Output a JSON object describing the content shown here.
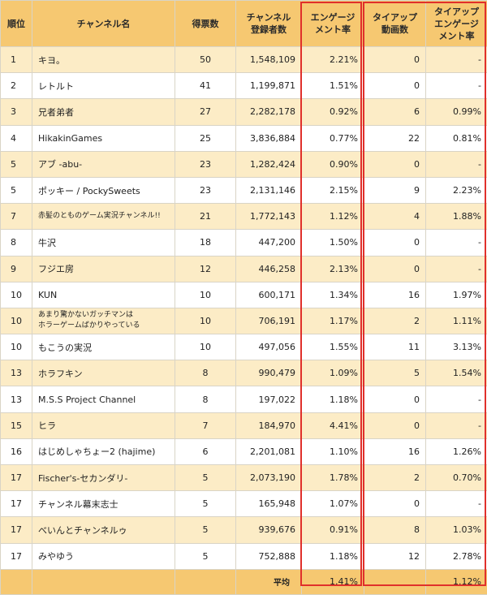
{
  "headers": {
    "rank": "順位",
    "channel": "チャンネル名",
    "votes": "得票数",
    "subscribers": "チャンネル\n登録者数",
    "engagement": "エンゲージ\nメント率",
    "tieup_videos": "タイアップ\n動画数",
    "tieup_engagement": "タイアップ\nエンゲージ\nメント率"
  },
  "rows": [
    {
      "rank": "1",
      "channel": "キヨ。",
      "votes": "50",
      "subscribers": "1,548,109",
      "engagement": "2.21%",
      "tieup_videos": "0",
      "tieup_engagement": "-"
    },
    {
      "rank": "2",
      "channel": "レトルト",
      "votes": "41",
      "subscribers": "1,199,871",
      "engagement": "1.51%",
      "tieup_videos": "0",
      "tieup_engagement": "-"
    },
    {
      "rank": "3",
      "channel": "兄者弟者",
      "votes": "27",
      "subscribers": "2,282,178",
      "engagement": "0.92%",
      "tieup_videos": "6",
      "tieup_engagement": "0.99%"
    },
    {
      "rank": "4",
      "channel": "HikakinGames",
      "votes": "25",
      "subscribers": "3,836,884",
      "engagement": "0.77%",
      "tieup_videos": "22",
      "tieup_engagement": "0.81%"
    },
    {
      "rank": "5",
      "channel": "アブ -abu-",
      "votes": "23",
      "subscribers": "1,282,424",
      "engagement": "0.90%",
      "tieup_videos": "0",
      "tieup_engagement": "-"
    },
    {
      "rank": "5",
      "channel": "ポッキー / PockySweets",
      "votes": "23",
      "subscribers": "2,131,146",
      "engagement": "2.15%",
      "tieup_videos": "9",
      "tieup_engagement": "2.23%"
    },
    {
      "rank": "7",
      "channel": "赤髪のとものゲーム実況チャンネル!!",
      "small": true,
      "votes": "21",
      "subscribers": "1,772,143",
      "engagement": "1.12%",
      "tieup_videos": "4",
      "tieup_engagement": "1.88%"
    },
    {
      "rank": "8",
      "channel": "牛沢",
      "votes": "18",
      "subscribers": "447,200",
      "engagement": "1.50%",
      "tieup_videos": "0",
      "tieup_engagement": "-"
    },
    {
      "rank": "9",
      "channel": "フジエ房",
      "votes": "12",
      "subscribers": "446,258",
      "engagement": "2.13%",
      "tieup_videos": "0",
      "tieup_engagement": "-"
    },
    {
      "rank": "10",
      "channel": "KUN",
      "votes": "10",
      "subscribers": "600,171",
      "engagement": "1.34%",
      "tieup_videos": "16",
      "tieup_engagement": "1.97%"
    },
    {
      "rank": "10",
      "channel": "あまり驚かないガッチマンは\nホラーゲームばかりやっている",
      "small": true,
      "votes": "10",
      "subscribers": "706,191",
      "engagement": "1.17%",
      "tieup_videos": "2",
      "tieup_engagement": "1.11%"
    },
    {
      "rank": "10",
      "channel": "もこうの実況",
      "votes": "10",
      "subscribers": "497,056",
      "engagement": "1.55%",
      "tieup_videos": "11",
      "tieup_engagement": "3.13%"
    },
    {
      "rank": "13",
      "channel": "ホラフキン",
      "votes": "8",
      "subscribers": "990,479",
      "engagement": "1.09%",
      "tieup_videos": "5",
      "tieup_engagement": "1.54%"
    },
    {
      "rank": "13",
      "channel": "M.S.S Project Channel",
      "votes": "8",
      "subscribers": "197,022",
      "engagement": "1.18%",
      "tieup_videos": "0",
      "tieup_engagement": "-"
    },
    {
      "rank": "15",
      "channel": "ヒラ",
      "votes": "7",
      "subscribers": "184,970",
      "engagement": "4.41%",
      "tieup_videos": "0",
      "tieup_engagement": "-"
    },
    {
      "rank": "16",
      "channel": "はじめしゃちょー2 (hajime)",
      "votes": "6",
      "subscribers": "2,201,081",
      "engagement": "1.10%",
      "tieup_videos": "16",
      "tieup_engagement": "1.26%"
    },
    {
      "rank": "17",
      "channel": "Fischer's-セカンダリ-",
      "votes": "5",
      "subscribers": "2,073,190",
      "engagement": "1.78%",
      "tieup_videos": "2",
      "tieup_engagement": "0.70%"
    },
    {
      "rank": "17",
      "channel": "チャンネル幕末志士",
      "votes": "5",
      "subscribers": "165,948",
      "engagement": "1.07%",
      "tieup_videos": "0",
      "tieup_engagement": "-"
    },
    {
      "rank": "17",
      "channel": "べいんとチャンネルゥ",
      "votes": "5",
      "subscribers": "939,676",
      "engagement": "0.91%",
      "tieup_videos": "8",
      "tieup_engagement": "1.03%"
    },
    {
      "rank": "17",
      "channel": "みやゆう",
      "votes": "5",
      "subscribers": "752,888",
      "engagement": "1.18%",
      "tieup_videos": "12",
      "tieup_engagement": "2.78%"
    }
  ],
  "average": {
    "label": "平均",
    "engagement": "1.41%",
    "tieup_engagement": "1.12%"
  },
  "colors": {
    "header_bg": "#f6c871",
    "odd_row_bg": "#fcecc6",
    "even_row_bg": "#ffffff",
    "highlight_border": "#e0302b"
  }
}
